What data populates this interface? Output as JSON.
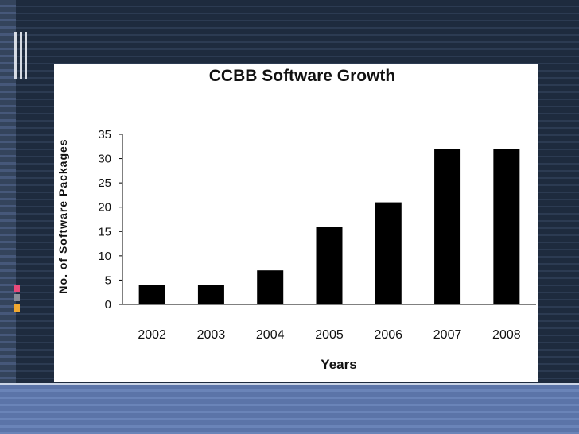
{
  "chart_data": {
    "type": "bar",
    "title": "CCBB Software Growth",
    "xlabel": "Years",
    "ylabel": "No. of Software Packages",
    "categories": [
      "2002",
      "2003",
      "2004",
      "2005",
      "2006",
      "2007",
      "2008"
    ],
    "values": [
      4,
      4,
      7,
      16,
      21,
      32,
      32
    ],
    "ylim": [
      0,
      35
    ],
    "yticks": [
      "0",
      "5",
      "10",
      "15",
      "20",
      "25",
      "30",
      "35"
    ],
    "bar_color": "#000000",
    "grid": false,
    "legend": "none"
  },
  "theme": {
    "panel_color": "#ffffff",
    "accent_squares": [
      "#e84a7a",
      "#8a8f99",
      "#f0a830"
    ]
  }
}
